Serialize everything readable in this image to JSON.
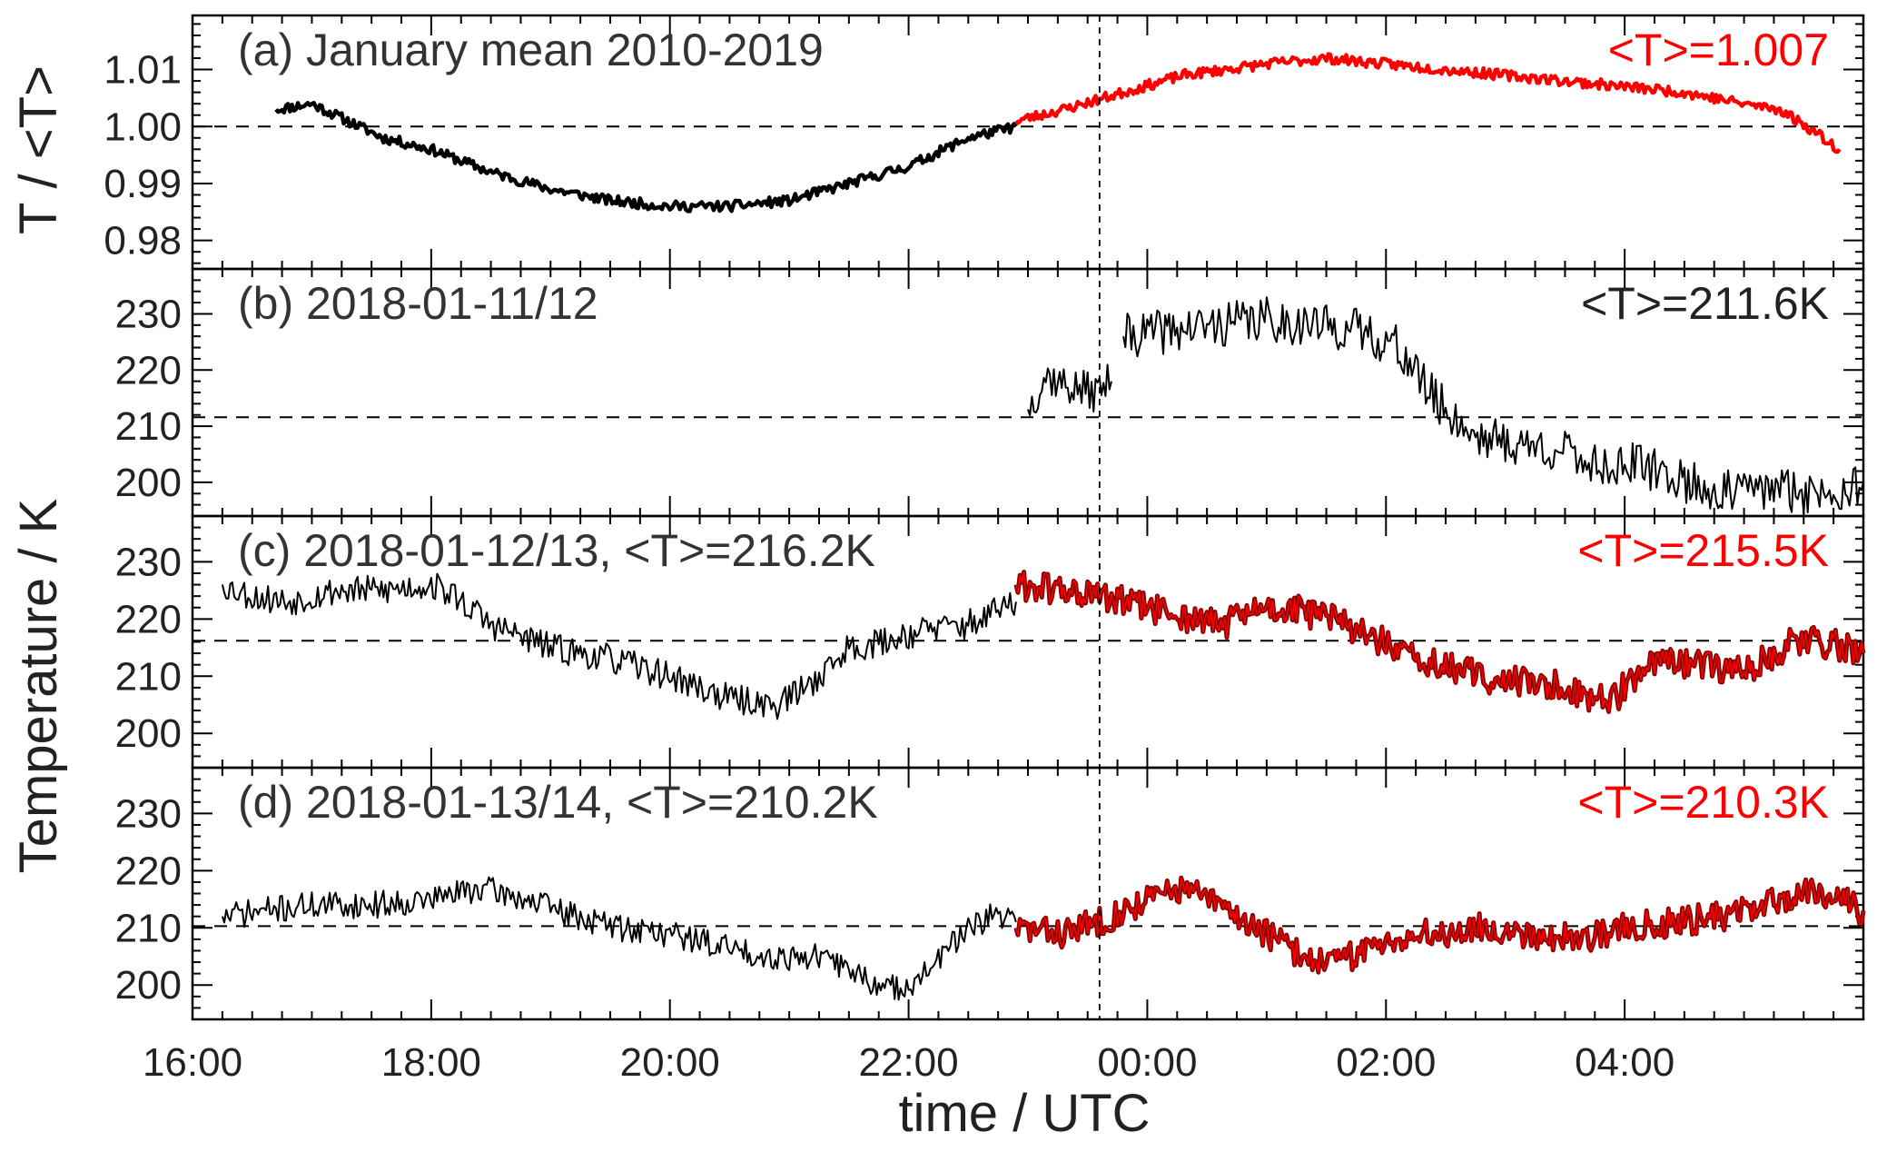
{
  "figure": {
    "xlabel": "time / UTC",
    "ylabel_top": "T / <T>",
    "ylabel_bottom": "Temperature / K"
  },
  "colors": {
    "black": "#000000",
    "red": "#ff0000",
    "dark_red_outline": "#8b0000"
  },
  "chart_data": [
    {
      "type": "line",
      "panel": "a",
      "title": "(a) January mean 2010-2019",
      "mean_label": "<T>=1.007",
      "mean_label_color": "#ff0000",
      "reference_line": 1.0,
      "ylim": [
        0.975,
        1.0195
      ],
      "yticks": [
        0.98,
        0.99,
        1.0,
        1.01
      ],
      "ytick_labels": [
        "0.98",
        "0.99",
        "1.00",
        "1.01"
      ],
      "xlim": [
        16.0,
        30.0
      ],
      "xticks": [
        16,
        18,
        20,
        22,
        24,
        26,
        28
      ],
      "xtick_labels": [
        "16:00",
        "18:00",
        "20:00",
        "22:00",
        "00:00",
        "02:00",
        "04:00"
      ],
      "vertical_marker": 23.6,
      "series": [
        {
          "color": "#000000",
          "width": 4.5,
          "noise": 0.0009,
          "seed": 11,
          "points": [
            [
              16.7,
              1.003
            ],
            [
              17.0,
              1.004
            ],
            [
              17.3,
              1.001
            ],
            [
              17.6,
              0.998
            ],
            [
              18.0,
              0.996
            ],
            [
              18.5,
              0.992
            ],
            [
              19.0,
              0.989
            ],
            [
              19.5,
              0.987
            ],
            [
              20.0,
              0.986
            ],
            [
              20.5,
              0.986
            ],
            [
              21.0,
              0.987
            ],
            [
              21.5,
              0.99
            ],
            [
              22.0,
              0.993
            ],
            [
              22.5,
              0.998
            ],
            [
              22.9,
              1.0
            ]
          ]
        },
        {
          "color": "#ff0000",
          "width": 4.5,
          "noise": 0.0009,
          "seed": 23,
          "points": [
            [
              22.9,
              1.001
            ],
            [
              23.3,
              1.003
            ],
            [
              23.8,
              1.006
            ],
            [
              24.3,
              1.009
            ],
            [
              25.0,
              1.011
            ],
            [
              25.5,
              1.012
            ],
            [
              26.0,
              1.011
            ],
            [
              26.5,
              1.01
            ],
            [
              27.0,
              1.009
            ],
            [
              27.5,
              1.008
            ],
            [
              28.0,
              1.007
            ],
            [
              28.5,
              1.006
            ],
            [
              29.0,
              1.004
            ],
            [
              29.3,
              1.003
            ],
            [
              29.6,
              0.999
            ],
            [
              29.8,
              0.996
            ]
          ]
        }
      ]
    },
    {
      "type": "line",
      "panel": "b",
      "title": "(b) 2018-01-11/12",
      "mean_label": "<T>=211.6K",
      "mean_label_color": "#222222",
      "reference_line": 211.6,
      "ylim": [
        194,
        238
      ],
      "yticks": [
        200,
        210,
        220,
        230
      ],
      "ytick_labels": [
        "200",
        "210",
        "220",
        "230"
      ],
      "xlim": [
        16.0,
        30.0
      ],
      "vertical_marker": 23.6,
      "series": [
        {
          "color": "#000000",
          "width": 2,
          "noise": 3.5,
          "seed": 37,
          "points": [
            [
              23.0,
              213
            ],
            [
              23.15,
              219
            ],
            [
              23.35,
              217
            ],
            [
              23.55,
              216
            ],
            [
              23.7,
              218
            ]
          ]
        },
        {
          "color": "#000000",
          "width": 2,
          "noise": 4.0,
          "seed": 41,
          "points": [
            [
              23.8,
              226
            ],
            [
              24.2,
              227
            ],
            [
              24.6,
              228
            ],
            [
              25.0,
              229
            ],
            [
              25.4,
              228
            ],
            [
              25.8,
              227
            ],
            [
              26.1,
              224
            ],
            [
              26.4,
              215
            ],
            [
              26.7,
              209
            ],
            [
              27.0,
              207
            ],
            [
              27.4,
              206
            ],
            [
              27.8,
              203
            ],
            [
              28.1,
              203
            ],
            [
              28.4,
              201
            ],
            [
              28.8,
              198
            ],
            [
              29.2,
              199
            ],
            [
              29.6,
              198
            ],
            [
              30.0,
              200
            ]
          ]
        }
      ]
    },
    {
      "type": "line",
      "panel": "c",
      "title": "(c) 2018-01-12/13, <T>=216.2K",
      "mean_label": "<T>=215.5K",
      "mean_label_color": "#ff0000",
      "reference_line": 216.2,
      "ylim": [
        194,
        238
      ],
      "yticks": [
        200,
        210,
        220,
        230
      ],
      "ytick_labels": [
        "200",
        "210",
        "220",
        "230"
      ],
      "xlim": [
        16.0,
        30.0
      ],
      "vertical_marker": 23.6,
      "series": [
        {
          "color": "#000000",
          "width": 2,
          "noise": 2.6,
          "seed": 53,
          "points": [
            [
              16.25,
              226
            ],
            [
              16.5,
              224
            ],
            [
              16.8,
              223
            ],
            [
              17.2,
              225
            ],
            [
              17.6,
              225
            ],
            [
              18.0,
              226
            ],
            [
              18.2,
              224
            ],
            [
              18.5,
              219
            ],
            [
              19.0,
              215
            ],
            [
              19.5,
              213
            ],
            [
              20.0,
              210
            ],
            [
              20.5,
              206
            ],
            [
              20.9,
              205
            ],
            [
              21.2,
              209
            ],
            [
              21.5,
              215
            ],
            [
              21.8,
              216
            ],
            [
              22.1,
              218
            ],
            [
              22.5,
              219
            ],
            [
              22.9,
              223
            ]
          ]
        },
        {
          "color": "#8b0000",
          "width": 5,
          "noise": 2.8,
          "seed": 61,
          "points": [
            [
              22.9,
              226
            ],
            [
              23.3,
              225
            ],
            [
              23.8,
              223
            ],
            [
              24.2,
              221
            ],
            [
              24.6,
              219
            ],
            [
              25.0,
              222
            ],
            [
              25.4,
              221
            ],
            [
              25.8,
              218
            ],
            [
              26.2,
              213
            ],
            [
              26.6,
              211
            ],
            [
              27.0,
              209
            ],
            [
              27.3,
              209
            ],
            [
              27.6,
              207
            ],
            [
              27.9,
              206
            ],
            [
              28.2,
              212
            ],
            [
              28.6,
              212
            ],
            [
              29.0,
              211
            ],
            [
              29.5,
              217
            ],
            [
              30.0,
              214
            ]
          ]
        },
        {
          "color": "#ff0000",
          "width": 1.4,
          "noise": 2.8,
          "seed": 61,
          "points": [
            [
              22.9,
              226
            ],
            [
              23.3,
              225
            ],
            [
              23.8,
              223
            ],
            [
              24.2,
              221
            ],
            [
              24.6,
              219
            ],
            [
              25.0,
              222
            ],
            [
              25.4,
              221
            ],
            [
              25.8,
              218
            ],
            [
              26.2,
              213
            ],
            [
              26.6,
              211
            ],
            [
              27.0,
              209
            ],
            [
              27.3,
              209
            ],
            [
              27.6,
              207
            ],
            [
              27.9,
              206
            ],
            [
              28.2,
              212
            ],
            [
              28.6,
              212
            ],
            [
              29.0,
              211
            ],
            [
              29.5,
              217
            ],
            [
              30.0,
              214
            ]
          ]
        }
      ]
    },
    {
      "type": "line",
      "panel": "d",
      "title": "(d) 2018-01-13/14, <T>=210.2K",
      "mean_label": "<T>=210.3K",
      "mean_label_color": "#ff0000",
      "reference_line": 210.3,
      "ylim": [
        194,
        238
      ],
      "yticks": [
        200,
        210,
        220,
        230
      ],
      "ytick_labels": [
        "200",
        "210",
        "220",
        "230"
      ],
      "xlim": [
        16.0,
        30.0
      ],
      "vertical_marker": 23.6,
      "series": [
        {
          "color": "#000000",
          "width": 2,
          "noise": 2.4,
          "seed": 71,
          "points": [
            [
              16.25,
              212
            ],
            [
              16.6,
              213
            ],
            [
              17.0,
              214
            ],
            [
              17.5,
              214
            ],
            [
              18.0,
              215
            ],
            [
              18.4,
              217
            ],
            [
              18.8,
              215
            ],
            [
              19.2,
              212
            ],
            [
              19.6,
              210
            ],
            [
              20.0,
              209
            ],
            [
              20.4,
              207
            ],
            [
              20.8,
              205
            ],
            [
              21.2,
              205
            ],
            [
              21.5,
              203
            ],
            [
              21.8,
              199
            ],
            [
              22.1,
              201
            ],
            [
              22.4,
              208
            ],
            [
              22.7,
              212
            ],
            [
              22.9,
              211
            ]
          ]
        },
        {
          "color": "#8b0000",
          "width": 5,
          "noise": 2.6,
          "seed": 83,
          "points": [
            [
              22.9,
              210
            ],
            [
              23.3,
              209
            ],
            [
              23.7,
              212
            ],
            [
              24.0,
              215
            ],
            [
              24.3,
              217
            ],
            [
              24.6,
              214
            ],
            [
              25.0,
              209
            ],
            [
              25.3,
              205
            ],
            [
              25.6,
              204
            ],
            [
              26.0,
              208
            ],
            [
              26.4,
              209
            ],
            [
              26.8,
              210
            ],
            [
              27.2,
              209
            ],
            [
              27.6,
              208
            ],
            [
              28.0,
              210
            ],
            [
              28.4,
              211
            ],
            [
              28.8,
              212
            ],
            [
              29.2,
              214
            ],
            [
              29.6,
              217
            ],
            [
              30.0,
              213
            ]
          ]
        },
        {
          "color": "#ff0000",
          "width": 1.4,
          "noise": 2.6,
          "seed": 83,
          "points": [
            [
              22.9,
              210
            ],
            [
              23.3,
              209
            ],
            [
              23.7,
              212
            ],
            [
              24.0,
              215
            ],
            [
              24.3,
              217
            ],
            [
              24.6,
              214
            ],
            [
              25.0,
              209
            ],
            [
              25.3,
              205
            ],
            [
              25.6,
              204
            ],
            [
              26.0,
              208
            ],
            [
              26.4,
              209
            ],
            [
              26.8,
              210
            ],
            [
              27.2,
              209
            ],
            [
              27.6,
              208
            ],
            [
              28.0,
              210
            ],
            [
              28.4,
              211
            ],
            [
              28.8,
              212
            ],
            [
              29.2,
              214
            ],
            [
              29.6,
              217
            ],
            [
              30.0,
              213
            ]
          ]
        }
      ]
    }
  ]
}
